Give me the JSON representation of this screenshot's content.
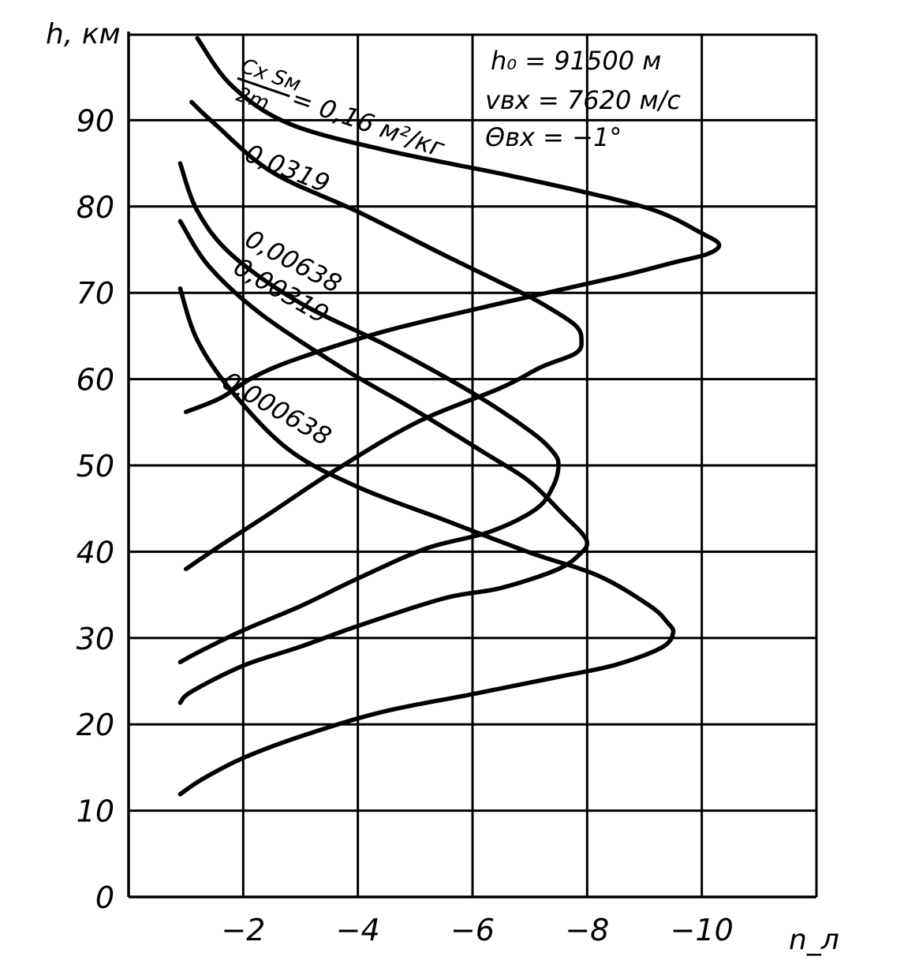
{
  "chart_data": {
    "type": "line",
    "xlabel": "n_л",
    "ylabel": "h, км",
    "xlim": [
      0,
      -12
    ],
    "ylim": [
      0,
      100
    ],
    "x_ticks": [
      "−2",
      "−4",
      "−6",
      "−8",
      "−10"
    ],
    "y_ticks": [
      "0",
      "10",
      "20",
      "30",
      "40",
      "50",
      "60",
      "70",
      "80",
      "90"
    ],
    "grid": true,
    "parameters": [
      "h₀ = 91500 м",
      "vвх = 7620 м/с",
      "Θвх = −1°"
    ],
    "ballistic_label": {
      "numerator": "Cx Sм",
      "denominator": "2m",
      "value": "= 0,16 м²/кг"
    },
    "series": [
      {
        "name": "0,16",
        "points": [
          [
            -1.2,
            99.5
          ],
          [
            -1.8,
            94
          ],
          [
            -2.8,
            89.6
          ],
          [
            -4.5,
            86.5
          ],
          [
            -6.5,
            83.8
          ],
          [
            -8,
            81.6
          ],
          [
            -9.2,
            79.5
          ],
          [
            -10,
            76.9
          ],
          [
            -10.3,
            75.6
          ],
          [
            -10.1,
            74.5
          ],
          [
            -9.5,
            73.5
          ],
          [
            -8.5,
            71.8
          ],
          [
            -6.5,
            68.8
          ],
          [
            -4.5,
            65.6
          ],
          [
            -3,
            62.5
          ],
          [
            -2.2,
            60.3
          ],
          [
            -1.6,
            57.8
          ],
          [
            -1,
            56.2
          ]
        ]
      },
      {
        "name": "0,0319",
        "points": [
          [
            -1.1,
            92.1
          ],
          [
            -1.5,
            89.6
          ],
          [
            -2.5,
            84
          ],
          [
            -4,
            79.4
          ],
          [
            -5.5,
            74.4
          ],
          [
            -6.8,
            70.2
          ],
          [
            -7.3,
            68.4
          ],
          [
            -7.8,
            66.2
          ],
          [
            -7.9,
            64.5
          ],
          [
            -7.8,
            63
          ],
          [
            -7.2,
            61.4
          ],
          [
            -6.5,
            59
          ],
          [
            -5,
            54.9
          ],
          [
            -3.5,
            49
          ],
          [
            -2.5,
            44.6
          ],
          [
            -1.6,
            40.7
          ],
          [
            -1,
            38
          ]
        ]
      },
      {
        "name": "0,00638",
        "points": [
          [
            -0.9,
            85
          ],
          [
            -1.2,
            79.5
          ],
          [
            -1.8,
            74.4
          ],
          [
            -3,
            68.8
          ],
          [
            -4.5,
            63.9
          ],
          [
            -6,
            58.4
          ],
          [
            -7,
            54
          ],
          [
            -7.4,
            51.6
          ],
          [
            -7.5,
            50
          ],
          [
            -7.4,
            47.5
          ],
          [
            -7.1,
            44.9
          ],
          [
            -6.3,
            42.3
          ],
          [
            -5.2,
            40.4
          ],
          [
            -4,
            36.9
          ],
          [
            -3,
            33.7
          ],
          [
            -2,
            30.9
          ],
          [
            -1.2,
            28.3
          ],
          [
            -0.9,
            27.2
          ]
        ]
      },
      {
        "name": "0,00319",
        "points": [
          [
            -0.9,
            78.3
          ],
          [
            -1.4,
            73.1
          ],
          [
            -2.3,
            67.6
          ],
          [
            -3.7,
            61.4
          ],
          [
            -5,
            56.4
          ],
          [
            -6.2,
            51.5
          ],
          [
            -7,
            48.1
          ],
          [
            -7.6,
            44.2
          ],
          [
            -7.9,
            42.2
          ],
          [
            -8,
            41
          ],
          [
            -7.9,
            39.9
          ],
          [
            -7.5,
            38
          ],
          [
            -6.5,
            35.8
          ],
          [
            -5.5,
            34.6
          ],
          [
            -4,
            31.4
          ],
          [
            -3,
            29
          ],
          [
            -2,
            26.8
          ],
          [
            -1.1,
            23.8
          ],
          [
            -0.9,
            22.5
          ]
        ]
      },
      {
        "name": "0,000638",
        "points": [
          [
            -0.9,
            70.5
          ],
          [
            -1.2,
            64.5
          ],
          [
            -1.8,
            58.6
          ],
          [
            -2.8,
            51.8
          ],
          [
            -4,
            47.5
          ],
          [
            -5.5,
            43.7
          ],
          [
            -7,
            39.9
          ],
          [
            -8.2,
            37.2
          ],
          [
            -9.1,
            33.7
          ],
          [
            -9.4,
            31.8
          ],
          [
            -9.5,
            30.6
          ],
          [
            -9.3,
            28.9
          ],
          [
            -8.5,
            26.9
          ],
          [
            -7.5,
            25.5
          ],
          [
            -6,
            23.5
          ],
          [
            -4.4,
            21.4
          ],
          [
            -3,
            18.6
          ],
          [
            -2,
            16.1
          ],
          [
            -1.3,
            13.7
          ],
          [
            -0.9,
            11.9
          ]
        ]
      }
    ],
    "curve_labels": [
      {
        "text": "0,0319",
        "series": "0,0319"
      },
      {
        "text": "0,00638",
        "series": "0,00638"
      },
      {
        "text": "0,00319",
        "series": "0,00319"
      },
      {
        "text": "0,000638",
        "series": "0,000638"
      }
    ]
  }
}
